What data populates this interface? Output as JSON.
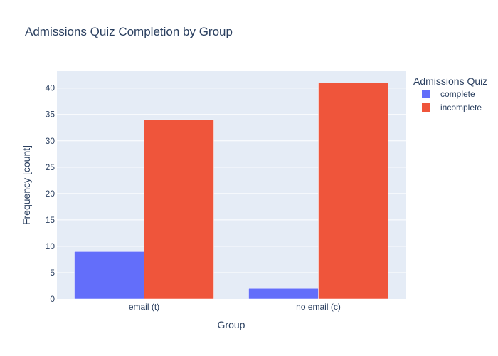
{
  "chart_data": {
    "type": "bar",
    "title": "Admissions Quiz Completion by Group",
    "xlabel": "Group",
    "ylabel": "Frequency [count]",
    "categories": [
      "email (t)",
      "no email (c)"
    ],
    "series": [
      {
        "name": "complete",
        "values": [
          9,
          2
        ],
        "color": "#636efa"
      },
      {
        "name": "incomplete",
        "values": [
          34,
          41
        ],
        "color": "#ef553b"
      }
    ],
    "ylim": [
      0,
      43.2
    ],
    "yticks": [
      0,
      5,
      10,
      15,
      20,
      25,
      30,
      35,
      40
    ],
    "grid": true,
    "barmode": "group",
    "legend": {
      "title": "Admissions Quiz",
      "placement": "right"
    },
    "colors": {
      "plot_background": "#e5ecf6",
      "grid": "#ffffff",
      "text": "#2a3f5f"
    }
  }
}
